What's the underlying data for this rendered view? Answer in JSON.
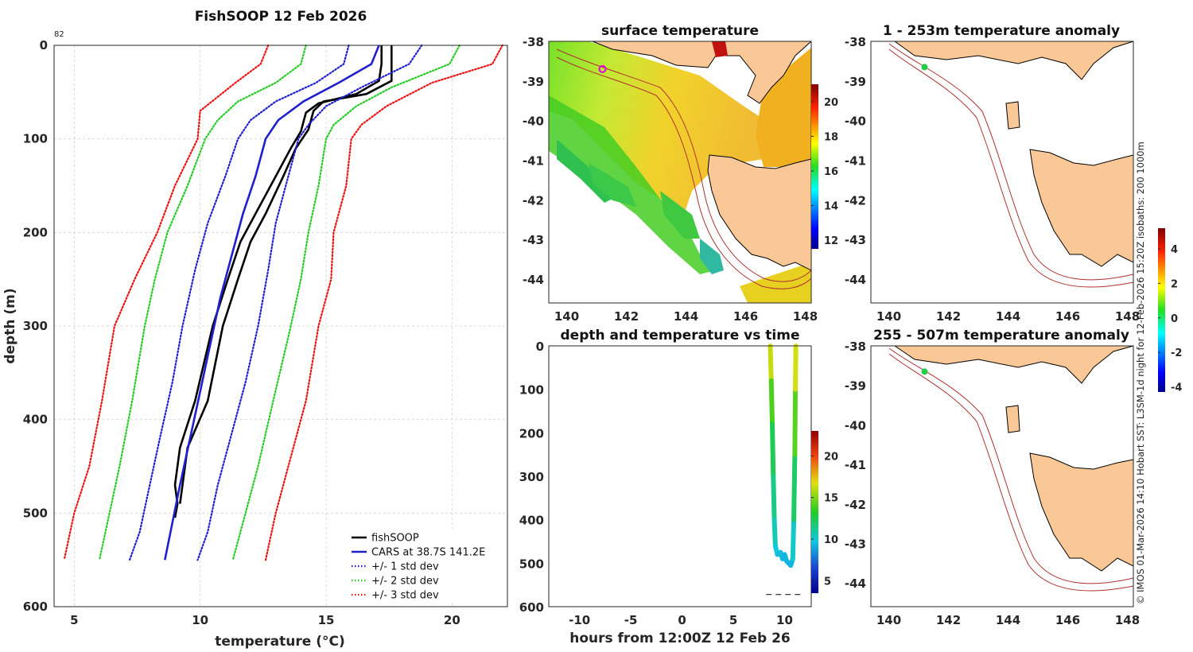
{
  "colors": {
    "fishsoop": "#000000",
    "cars": "#1f1fd0",
    "std1": "#1f1fd0",
    "std2": "#22cc22",
    "std3": "#ee1111",
    "land": "#f9c896",
    "isobath": "#b03030",
    "marker_profile": "#22cc44",
    "marker_sst": "#e000e0"
  },
  "icons": {
    "profile_marker": "circle-marker-icon"
  },
  "chart_data": [
    {
      "id": "profile",
      "type": "line",
      "title": "FishSOOP 12 Feb 2026",
      "corner_label": "82",
      "xlabel": "temperature (°C)",
      "ylabel": "depth (m)",
      "xlim": [
        4.2,
        22.2
      ],
      "ylim": [
        600,
        0
      ],
      "xticks": [
        5,
        10,
        15,
        20
      ],
      "yticks": [
        0,
        100,
        200,
        300,
        400,
        500,
        600
      ],
      "grid": true,
      "legend_position": "bottom-right",
      "series": [
        {
          "name": "fishSOOP",
          "style": "solid",
          "color_key": "fishsoop",
          "x": [
            17.2,
            17.2,
            17.1,
            16.2,
            14.7,
            14.2,
            14.0,
            13.6,
            13.0,
            12.2,
            11.6,
            11.1,
            10.5,
            9.8,
            9.2,
            9.0,
            9.1,
            9.0
          ],
          "y": [
            0,
            20,
            38,
            52,
            62,
            72,
            92,
            110,
            140,
            180,
            210,
            250,
            300,
            380,
            430,
            470,
            490,
            505
          ]
        },
        {
          "name": "fishSOOP (second pass)",
          "style": "solid",
          "color_key": "fishsoop",
          "legend": false,
          "x": [
            17.6,
            17.6,
            17.6,
            16.6,
            14.9,
            14.5,
            14.3,
            13.8,
            13.3,
            12.6,
            12.0,
            11.5,
            10.9,
            10.3,
            9.5,
            9.3,
            9.2
          ],
          "y": [
            0,
            20,
            38,
            52,
            60,
            70,
            90,
            110,
            140,
            180,
            210,
            250,
            300,
            380,
            430,
            470,
            490
          ]
        },
        {
          "name": "CARS at 38.7S 141.2E",
          "style": "solid",
          "color_key": "cars",
          "x": [
            17.1,
            16.8,
            15.5,
            14.1,
            13.1,
            12.6,
            12.2,
            11.7,
            11.3,
            10.8,
            10.4,
            10.0,
            9.6,
            9.2,
            8.9,
            8.6
          ],
          "y": [
            0,
            20,
            40,
            60,
            80,
            100,
            140,
            180,
            220,
            270,
            320,
            370,
            420,
            470,
            510,
            550
          ]
        },
        {
          "name": "+/- 1 std dev",
          "style": "dotted",
          "color_key": "std1",
          "x": [
            15.9,
            15.7,
            14.6,
            13.0,
            12.0,
            11.5,
            11.0,
            10.3,
            9.8,
            9.3,
            8.9,
            8.4,
            8.0,
            7.6,
            7.2
          ],
          "y": [
            0,
            20,
            40,
            60,
            80,
            100,
            140,
            190,
            240,
            300,
            360,
            420,
            470,
            520,
            550
          ]
        },
        {
          "name": "+/- 1 std dev (upper)",
          "style": "dotted",
          "color_key": "std1",
          "legend": false,
          "x": [
            18.8,
            18.3,
            16.4,
            15.0,
            14.3,
            13.9,
            13.5,
            13.0,
            12.7,
            12.3,
            11.8,
            11.2,
            10.7,
            10.3,
            9.9
          ],
          "y": [
            0,
            20,
            45,
            65,
            85,
            100,
            140,
            190,
            240,
            300,
            360,
            420,
            470,
            520,
            550
          ]
        },
        {
          "name": "+/- 2 std dev",
          "style": "dotted",
          "color_key": "std2",
          "x": [
            14.2,
            14.0,
            13.0,
            11.5,
            10.7,
            10.2,
            9.5,
            8.7,
            8.2,
            7.8,
            7.3,
            6.8,
            6.4,
            6.0
          ],
          "y": [
            0,
            20,
            40,
            60,
            80,
            100,
            150,
            200,
            250,
            300,
            380,
            450,
            500,
            550
          ]
        },
        {
          "name": "+/- 2 std dev (upper)",
          "style": "dotted",
          "color_key": "std2",
          "legend": false,
          "x": [
            20.3,
            19.9,
            17.6,
            16.2,
            15.3,
            15.0,
            14.7,
            14.3,
            14.0,
            13.6,
            12.9,
            12.3,
            11.8,
            11.3
          ],
          "y": [
            0,
            20,
            45,
            65,
            85,
            100,
            150,
            200,
            250,
            300,
            380,
            450,
            500,
            550
          ]
        },
        {
          "name": "+/- 3 std dev",
          "style": "dotted",
          "color_key": "std3",
          "x": [
            12.7,
            12.4,
            11.4,
            10.0,
            9.9,
            9.0,
            8.3,
            7.4,
            6.6,
            6.1,
            5.6,
            5.0,
            4.6
          ],
          "y": [
            0,
            20,
            40,
            70,
            100,
            150,
            200,
            250,
            300,
            380,
            450,
            500,
            550
          ]
        },
        {
          "name": "+/- 3 std dev (upper)",
          "style": "dotted",
          "color_key": "std3",
          "legend": false,
          "x": [
            22.0,
            21.6,
            19.2,
            17.4,
            16.4,
            16.0,
            15.8,
            15.3,
            15.2,
            14.7,
            14.2,
            13.5,
            13.0,
            12.6
          ],
          "y": [
            0,
            20,
            40,
            65,
            85,
            100,
            150,
            200,
            250,
            300,
            380,
            450,
            500,
            550
          ]
        }
      ]
    },
    {
      "id": "sst",
      "type": "heatmap",
      "title": "surface temperature",
      "xlim": [
        139.4,
        148.2
      ],
      "ylim": [
        -44.6,
        -38
      ],
      "xticks": [
        140,
        142,
        144,
        146,
        148
      ],
      "yticks": [
        -38,
        -39,
        -40,
        -41,
        -42,
        -43,
        -44
      ],
      "colorbar": {
        "min": 11.5,
        "max": 21,
        "ticks": [
          12,
          14,
          16,
          18,
          20
        ]
      },
      "fishsoop_location": {
        "lon": 141.2,
        "lat": -38.7
      }
    },
    {
      "id": "anom1",
      "type": "map",
      "title": "1 - 253m temperature anomaly",
      "xlim": [
        139.4,
        148.2
      ],
      "ylim": [
        -44.6,
        -38
      ],
      "xticks": [
        140,
        142,
        144,
        146,
        148
      ],
      "yticks": [
        -38,
        -39,
        -40,
        -41,
        -42,
        -43,
        -44
      ],
      "marker": {
        "lon": 141.2,
        "lat": -38.65
      }
    },
    {
      "id": "timeplot",
      "type": "line",
      "title": "depth and temperature vs time",
      "xlabel": "hours from 12:00Z 12 Feb 26",
      "xlim": [
        -13,
        12.6
      ],
      "ylim": [
        600,
        0
      ],
      "xticks": [
        -10,
        -5,
        0,
        5,
        10
      ],
      "yticks": [
        0,
        100,
        200,
        300,
        400,
        500,
        600
      ],
      "colorbar": {
        "min": 3.5,
        "max": 23,
        "ticks": [
          5,
          10,
          15,
          20
        ]
      },
      "track": {
        "hours": [
          8.6,
          8.7,
          8.8,
          8.9,
          9.0,
          9.1,
          9.3,
          9.6,
          9.8,
          10.0,
          10.2,
          10.4,
          10.6,
          10.8,
          10.9,
          11.0,
          11.05,
          11.1
        ],
        "depth": [
          0,
          80,
          180,
          300,
          400,
          460,
          480,
          475,
          490,
          480,
          495,
          500,
          505,
          490,
          400,
          250,
          100,
          0
        ],
        "temperature": [
          17.5,
          15,
          13,
          11.8,
          11,
          10,
          9.5,
          9.5,
          9.4,
          9.3,
          9.3,
          9.2,
          9.2,
          9.3,
          11,
          13,
          15.5,
          17.5
        ]
      },
      "dashes": {
        "hours": [
          8.2,
          11.6
        ],
        "depth": 572
      }
    },
    {
      "id": "anom2",
      "type": "map",
      "title": "255 - 507m temperature anomaly",
      "xlim": [
        139.4,
        148.2
      ],
      "ylim": [
        -44.6,
        -38
      ],
      "xticks": [
        140,
        142,
        144,
        146,
        148
      ],
      "yticks": [
        -38,
        -39,
        -40,
        -41,
        -42,
        -43,
        -44
      ],
      "marker": {
        "lon": 141.2,
        "lat": -38.65
      }
    },
    {
      "id": "anomaly_colorbar",
      "type": "heatmap",
      "colorbar": {
        "min": -4.3,
        "max": 5.2,
        "ticks": [
          4,
          2,
          0,
          -2,
          -4
        ]
      }
    }
  ],
  "legend": {
    "entries": [
      {
        "label": "fishSOOP",
        "style": "solid",
        "color_key": "fishsoop"
      },
      {
        "label": "CARS at 38.7S 141.2E",
        "style": "solid",
        "color_key": "cars"
      },
      {
        "label": "+/- 1 std dev",
        "style": "dotted",
        "color_key": "std1"
      },
      {
        "label": "+/- 2 std dev",
        "style": "dotted",
        "color_key": "std2"
      },
      {
        "label": "+/- 3 std dev",
        "style": "dotted",
        "color_key": "std3"
      }
    ]
  },
  "side_note": "© IMOS 01-Mar-2026 14:10 Hobart SST: L3SM-1d night for 12-Feb-2026 15:20Z isobaths: 200  1000m"
}
